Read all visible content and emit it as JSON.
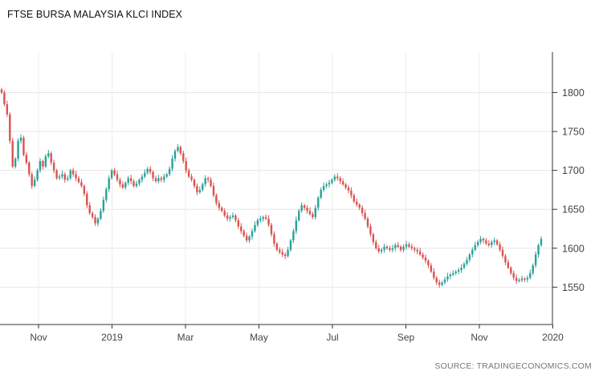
{
  "chart_data": {
    "type": "candlestick",
    "title": "FTSE BURSA MALAYSIA KLCI INDEX",
    "source": "SOURCE: TRADINGECONOMICS.COM",
    "ylim": [
      1502,
      1852
    ],
    "y_ticks": [
      1550,
      1600,
      1650,
      1700,
      1750,
      1800
    ],
    "x_ticks": [
      "Nov",
      "2019",
      "Mar",
      "May",
      "Jul",
      "Sep",
      "Nov",
      "2020"
    ],
    "grid": true,
    "y_axis_position": "right",
    "up_color": "#2aa198",
    "down_color": "#d9534f",
    "close": [
      1800,
      1785,
      1772,
      1738,
      1705,
      1715,
      1738,
      1742,
      1720,
      1710,
      1695,
      1680,
      1688,
      1700,
      1712,
      1705,
      1718,
      1722,
      1710,
      1700,
      1690,
      1692,
      1695,
      1688,
      1690,
      1700,
      1695,
      1690,
      1685,
      1680,
      1670,
      1655,
      1645,
      1640,
      1632,
      1638,
      1648,
      1662,
      1676,
      1690,
      1700,
      1695,
      1688,
      1682,
      1678,
      1684,
      1690,
      1686,
      1680,
      1683,
      1688,
      1692,
      1697,
      1702,
      1698,
      1690,
      1686,
      1690,
      1688,
      1692,
      1695,
      1702,
      1715,
      1725,
      1730,
      1722,
      1712,
      1700,
      1692,
      1688,
      1680,
      1672,
      1675,
      1682,
      1690,
      1688,
      1680,
      1668,
      1658,
      1652,
      1648,
      1642,
      1638,
      1640,
      1642,
      1636,
      1628,
      1622,
      1616,
      1610,
      1615,
      1622,
      1630,
      1636,
      1638,
      1640,
      1638,
      1630,
      1618,
      1606,
      1598,
      1595,
      1592,
      1590,
      1598,
      1610,
      1622,
      1636,
      1648,
      1655,
      1652,
      1648,
      1644,
      1640,
      1652,
      1665,
      1675,
      1680,
      1682,
      1684,
      1688,
      1692,
      1690,
      1686,
      1682,
      1678,
      1674,
      1668,
      1660,
      1656,
      1652,
      1645,
      1638,
      1628,
      1618,
      1608,
      1600,
      1596,
      1598,
      1602,
      1600,
      1598,
      1600,
      1604,
      1602,
      1598,
      1602,
      1605,
      1602,
      1600,
      1598,
      1596,
      1592,
      1588,
      1584,
      1578,
      1570,
      1562,
      1556,
      1553,
      1556,
      1560,
      1564,
      1566,
      1568,
      1570,
      1572,
      1575,
      1580,
      1585,
      1592,
      1598,
      1604,
      1608,
      1612,
      1610,
      1606,
      1604,
      1608,
      1610,
      1605,
      1598,
      1590,
      1582,
      1575,
      1568,
      1562,
      1558,
      1559,
      1561,
      1560,
      1562,
      1568,
      1578,
      1592,
      1604,
      1612
    ]
  }
}
